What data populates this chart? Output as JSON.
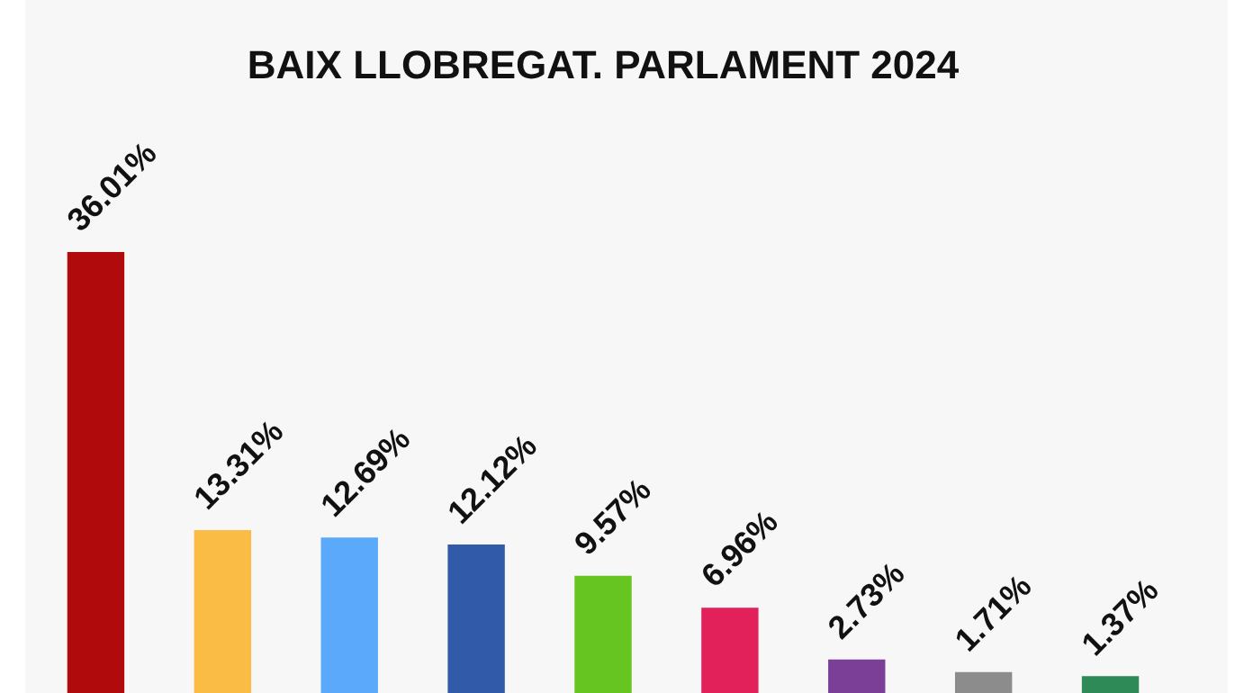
{
  "chart_data": {
    "type": "bar",
    "title": "BAIX LLOBREGAT. PARLAMENT 2024",
    "categories": [
      null,
      null,
      null,
      null,
      null,
      null,
      null,
      null,
      null
    ],
    "values": [
      36.01,
      13.31,
      12.69,
      12.12,
      9.57,
      6.96,
      2.73,
      1.71,
      1.37
    ],
    "value_labels": [
      "36.01%",
      "13.31%",
      "12.69%",
      "12.12%",
      "9.57%",
      "6.96%",
      "2.73%",
      "1.71%",
      "1.37%"
    ],
    "colors": [
      "#b00a0c",
      "#fbbc45",
      "#5aa9fb",
      "#315aa8",
      "#66c520",
      "#e2215a",
      "#7b3f98",
      "#8c8c8c",
      "#2e8b57"
    ]
  }
}
